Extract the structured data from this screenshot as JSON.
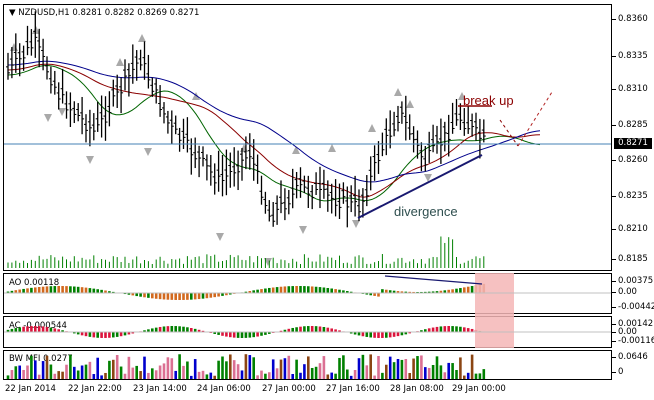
{
  "main": {
    "symbol_header": "NZDUSD,H1 0.8281 0.8282 0.8269 0.8271",
    "price_ticks": [
      "0.8360",
      "0.8335",
      "0.8310",
      "0.8285",
      "0.8260",
      "0.8235",
      "0.8210",
      "0.8185"
    ],
    "current_price": "0.8271",
    "annotations": {
      "break_up": "break up",
      "divergence": "divergence"
    }
  },
  "ao": {
    "header": "AO 0.00118",
    "ticks": [
      "0.00375",
      "0.00",
      "-0.00442"
    ]
  },
  "ac": {
    "header": "AC -0.000544",
    "ticks": [
      "0.00142",
      "0.00",
      "-0.00116"
    ]
  },
  "bw": {
    "header": "BW MFI 0.0277",
    "ticks": [
      "0.0646",
      "0"
    ]
  },
  "time_axis": [
    "22 Jan 2014",
    "22 Jan 22:00",
    "23 Jan 14:00",
    "24 Jan 06:00",
    "27 Jan 00:00",
    "27 Jan 16:00",
    "28 Jan 08:00",
    "29 Jan 00:00"
  ],
  "colors": {
    "bull_bar": "#008000",
    "bear_bar": "#d2691e",
    "ac_down": "#dc143c",
    "ma_blue": "#00008b",
    "ma_red": "#8b0000",
    "ma_green": "#006400",
    "divergence_line": "#191970",
    "highlight": "#f4b6b6"
  }
}
